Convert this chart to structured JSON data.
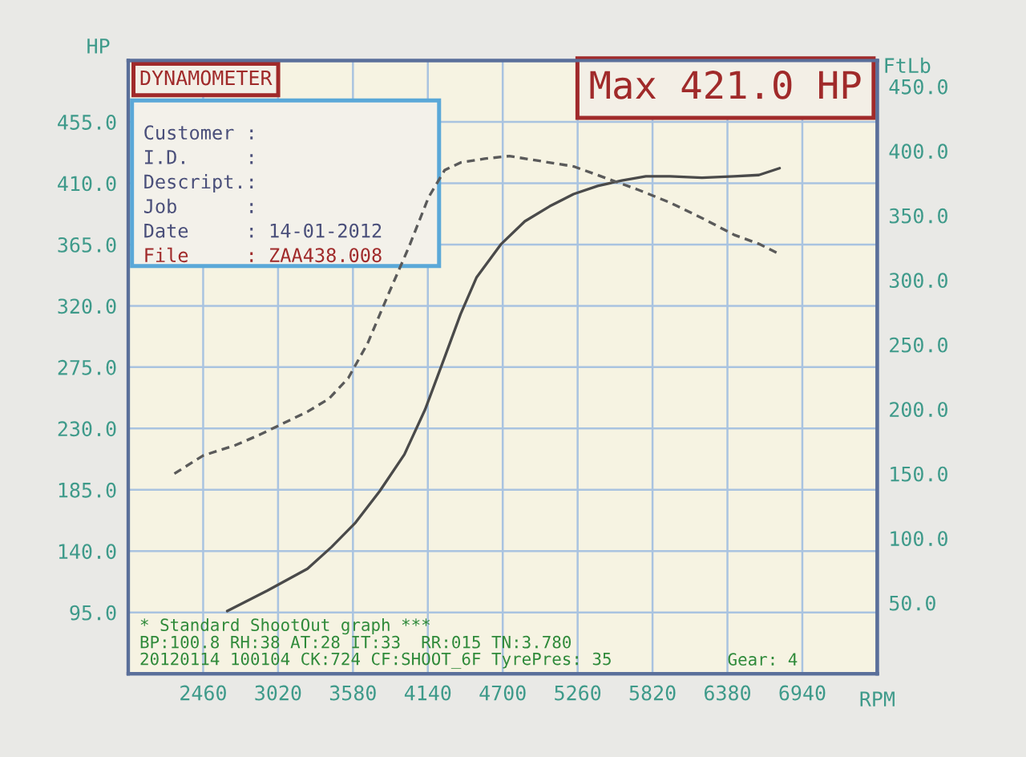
{
  "chart_data": {
    "type": "line",
    "xlabel": "RPM",
    "ylabel": "HP",
    "y2label": "FtLb",
    "xlim": [
      1900,
      7500
    ],
    "xticks": [
      2460,
      3020,
      3580,
      4140,
      4700,
      5260,
      5820,
      6380,
      6940
    ],
    "ylim": [
      50,
      500
    ],
    "yticks": [
      {
        "value": 95,
        "label": "95.0"
      },
      {
        "value": 140,
        "label": "140.0"
      },
      {
        "value": 185,
        "label": "185.0"
      },
      {
        "value": 230,
        "label": "230.0"
      },
      {
        "value": 275,
        "label": "275.0"
      },
      {
        "value": 320,
        "label": "320.0"
      },
      {
        "value": 365,
        "label": "365.0"
      },
      {
        "value": 410,
        "label": "410.0"
      },
      {
        "value": 455,
        "label": "455.0"
      }
    ],
    "y2lim": [
      -5,
      470
    ],
    "y2ticks": [
      {
        "value": 50,
        "label": "50.0"
      },
      {
        "value": 100,
        "label": "100.0"
      },
      {
        "value": 150,
        "label": "150.0"
      },
      {
        "value": 200,
        "label": "200.0"
      },
      {
        "value": 250,
        "label": "250.0"
      },
      {
        "value": 300,
        "label": "300.0"
      },
      {
        "value": 350,
        "label": "350.0"
      },
      {
        "value": 400,
        "label": "400.0"
      },
      {
        "value": 450,
        "label": "450.0"
      }
    ],
    "grid": true,
    "series": [
      {
        "color": "#4a4a4a",
        "line_style": "solid",
        "x": [
          2640,
          2940,
          3240,
          3420,
          3600,
          3780,
          3965,
          4120,
          4265,
          4385,
          4505,
          4685,
          4865,
          5050,
          5230,
          5410,
          5590,
          5770,
          5950,
          6190,
          6430,
          6615,
          6770
        ],
        "values": [
          96,
          111,
          127,
          143,
          161,
          184,
          211,
          244,
          282,
          314,
          341,
          365,
          382,
          393,
          402,
          408,
          412,
          415,
          415,
          414,
          415,
          416,
          421
        ]
      },
      {
        "color": "#5a5a5a",
        "line_style": "dashed",
        "axis": "y2",
        "x": [
          2245,
          2460,
          2700,
          2880,
          3060,
          3240,
          3400,
          3545,
          3690,
          3845,
          4000,
          4145,
          4265,
          4385,
          4565,
          4750,
          4990,
          5230,
          5470,
          5710,
          5950,
          6190,
          6430,
          6615,
          6770
        ],
        "values": [
          150,
          164,
          172,
          180,
          189,
          198,
          208,
          224,
          251,
          289,
          326,
          364,
          385,
          391,
          394,
          396,
          392,
          388,
          379,
          370,
          360,
          348,
          335,
          328,
          320
        ]
      }
    ],
    "annotations": [
      "DYNAMOMETER",
      "Customer :",
      "I.D.     :",
      "Descript.:",
      "Job      :",
      "Date     : 14-01-2012",
      "File     : ZAA438.008",
      "Max 421.0 HP",
      "* Standard ShootOut graph ***",
      "BP:100.8 RH:38 AT:28 IT:33  RR:015 TN:3.780",
      "20120114 100104 CK:724 CF:SHOOT_6F TyrePres: 35",
      "Gear: 4"
    ]
  }
}
